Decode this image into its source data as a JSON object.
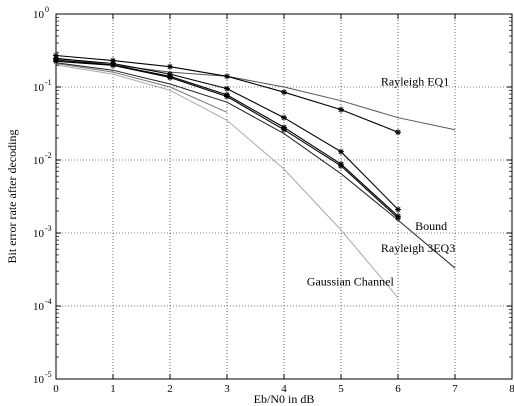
{
  "chart_data": {
    "type": "line",
    "title": "",
    "xlabel": "Eb/N0 in dB",
    "ylabel": "Bit error rate after decoding",
    "xlim": [
      0,
      8
    ],
    "ylim": [
      1e-05,
      1
    ],
    "yscale": "log",
    "grid": true,
    "x_ticks": [
      "0",
      "1",
      "2",
      "3",
      "4",
      "5",
      "6",
      "7",
      "8"
    ],
    "y_ticks": [
      {
        "base": "10",
        "exp": "0",
        "value": 1
      },
      {
        "base": "10",
        "exp": "-1",
        "value": 0.1
      },
      {
        "base": "10",
        "exp": "-2",
        "value": 0.01
      },
      {
        "base": "10",
        "exp": "-3",
        "value": 0.001
      },
      {
        "base": "10",
        "exp": "-4",
        "value": 0.0001
      },
      {
        "base": "10",
        "exp": "-5",
        "value": 1e-05
      }
    ],
    "annotations": [
      {
        "text": "Rayleigh EQ1",
        "x": 5.7,
        "y": 0.105
      },
      {
        "text": "Bound",
        "x": 6.3,
        "y": 0.0011
      },
      {
        "text": "Rayleigh 3EQ3",
        "x": 5.7,
        "y": 0.00055
      },
      {
        "text": "Gaussian Channel",
        "x": 4.4,
        "y": 0.00019
      }
    ],
    "series": [
      {
        "x": [
          0,
          1,
          2,
          3,
          4,
          5,
          6,
          7
        ],
        "y": [
          0.25,
          0.2,
          0.16,
          0.14,
          0.1,
          0.065,
          0.038,
          0.026
        ],
        "color": "#555555",
        "marker": false
      },
      {
        "x": [
          0,
          1,
          2,
          3,
          4,
          5,
          6
        ],
        "y": [
          0.27,
          0.23,
          0.19,
          0.14,
          0.085,
          0.049,
          0.024
        ],
        "color": "#000000",
        "marker": true
      },
      {
        "x": [
          0,
          1,
          2,
          3,
          4,
          5,
          6
        ],
        "y": [
          0.245,
          0.21,
          0.15,
          0.095,
          0.038,
          0.013,
          0.0021
        ],
        "color": "#000000",
        "marker": true
      },
      {
        "x": [
          0,
          1,
          2,
          3,
          4,
          5,
          6
        ],
        "y": [
          0.235,
          0.2,
          0.14,
          0.078,
          0.028,
          0.0088,
          0.0017
        ],
        "color": "#000000",
        "marker": true
      },
      {
        "x": [
          0,
          1,
          2,
          3,
          4,
          5,
          6
        ],
        "y": [
          0.225,
          0.198,
          0.135,
          0.074,
          0.026,
          0.0083,
          0.0016
        ],
        "color": "#000000",
        "marker": true
      },
      {
        "x": [
          0,
          1,
          2,
          3,
          4,
          5,
          6,
          7
        ],
        "y": [
          0.215,
          0.17,
          0.11,
          0.062,
          0.023,
          0.0065,
          0.0015,
          0.00033
        ],
        "color": "#222222",
        "marker": false
      },
      {
        "x": [
          0,
          1,
          2,
          3,
          4,
          5,
          6
        ],
        "y": [
          0.2,
          0.15,
          0.09,
          0.035,
          0.0075,
          0.0011,
          0.00013
        ],
        "color": "#aaaaaa",
        "marker": false
      },
      {
        "x": [
          0,
          1,
          2,
          3
        ],
        "y": [
          0.21,
          0.16,
          0.1,
          0.045
        ],
        "color": "#777777",
        "marker": false
      }
    ]
  }
}
